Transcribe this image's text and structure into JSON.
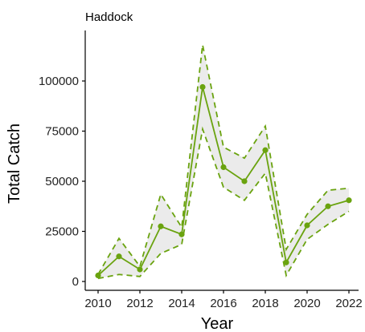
{
  "colors": {
    "line": "#6aa30f",
    "ribbon": "#ebebeb",
    "axis": "#000000",
    "text": "#222222"
  },
  "chart_data": {
    "type": "line",
    "title": "Haddock",
    "xlabel": "Year",
    "ylabel": "Total Catch",
    "xlim": [
      2010,
      2022
    ],
    "ylim": [
      0,
      120000
    ],
    "xticks": [
      2010,
      2012,
      2014,
      2016,
      2018,
      2020,
      2022
    ],
    "xtick_labels": [
      "2010",
      "2012",
      "2014",
      "2016",
      "2018",
      "2020",
      "2022"
    ],
    "yticks": [
      0,
      25000,
      50000,
      75000,
      100000
    ],
    "ytick_labels": [
      "0",
      "25000",
      "50000",
      "75000",
      "100000"
    ],
    "grid": false,
    "legend": "none",
    "series": [
      {
        "x": [
          2010,
          2011,
          2012,
          2013,
          2014,
          2015,
          2016,
          2017,
          2018,
          2019,
          2020,
          2021,
          2022
        ],
        "values": [
          3000,
          12500,
          6000,
          27500,
          23500,
          97000,
          57000,
          50000,
          65500,
          9500,
          28000,
          37500,
          40500
        ],
        "lower": [
          1500,
          3500,
          2500,
          14000,
          18500,
          76000,
          47000,
          40500,
          54000,
          3000,
          21000,
          28500,
          35000
        ],
        "upper": [
          3500,
          21500,
          7500,
          43500,
          27000,
          118000,
          67000,
          61500,
          77500,
          16000,
          33500,
          45500,
          46500
        ]
      }
    ]
  }
}
